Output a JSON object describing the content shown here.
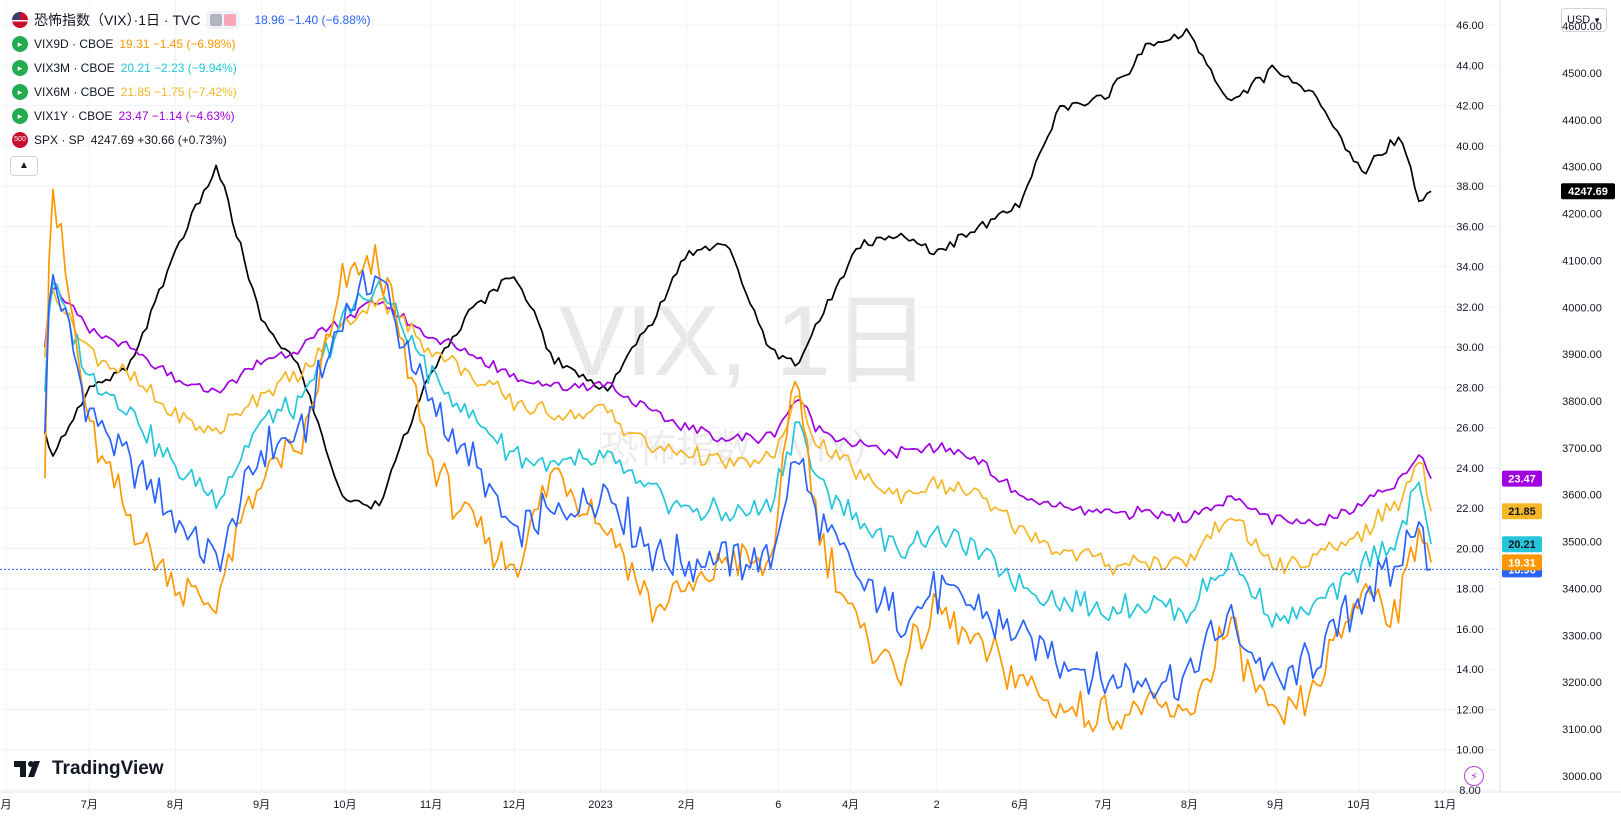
{
  "watermark": {
    "line1": "VIX, 1日",
    "line2": "恐怖指数（VIX）"
  },
  "header": {
    "title": "恐怖指数（VIX）·1日 · TVC",
    "main_values": "18.96 −1.40 (−6.88%)"
  },
  "legend": [
    {
      "symbol": "VIX9D · CBOE",
      "values": "19.31 −1.45 (−6.98%)",
      "color": "#ff9800"
    },
    {
      "symbol": "VIX3M · CBOE",
      "values": "20.21 −2.23 (−9.94%)",
      "color": "#26c6da"
    },
    {
      "symbol": "VIX6M · CBOE",
      "values": "21.85 −1.75 (−7.42%)",
      "color": "#f5b728"
    },
    {
      "symbol": "VIX1Y · CBOE",
      "values": "23.47 −1.14 (−4.63%)",
      "color": "#a100e0"
    },
    {
      "symbol": "SPX · SP",
      "values": "4247.69 +30.66 (+0.73%)",
      "color": "#000000",
      "badge": "500"
    }
  ],
  "currency_button": "USD",
  "branding": "TradingView",
  "chart_data": {
    "type": "line",
    "x_tick_labels": [
      "月",
      "7月",
      "8月",
      "9月",
      "10月",
      "11月",
      "12月",
      "2023",
      "2月",
      "6",
      "4月",
      "2",
      "6月",
      "7月",
      "8月",
      "9月",
      "10月",
      "11月"
    ],
    "y_left_ticks": [
      "46.00",
      "44.00",
      "42.00",
      "40.00",
      "38.00",
      "36.00",
      "34.00",
      "32.00",
      "30.00",
      "28.00",
      "26.00",
      "24.00",
      "22.00",
      "20.00",
      "18.00",
      "16.00",
      "14.00",
      "12.00",
      "10.00",
      "8.00"
    ],
    "y_right_ticks": [
      "4600.00",
      "4500.00",
      "4400.00",
      "4300.00",
      "4200.00",
      "4100.00",
      "4000.00",
      "3900.00",
      "3800.00",
      "3700.00",
      "3600.00",
      "3500.00",
      "3400.00",
      "3300.00",
      "3200.00",
      "3100.00",
      "3000.00"
    ],
    "ylim_left": [
      8,
      47
    ],
    "ylim_right": [
      2970,
      4645
    ],
    "x": [
      "2022-06-15",
      "2022-06-17",
      "2022-07-01",
      "2022-07-15",
      "2022-08-01",
      "2022-08-16",
      "2022-09-01",
      "2022-09-15",
      "2022-09-30",
      "2022-10-13",
      "2022-11-01",
      "2022-11-15",
      "2022-12-01",
      "2022-12-15",
      "2023-01-03",
      "2023-01-20",
      "2023-02-01",
      "2023-02-15",
      "2023-03-03",
      "2023-03-13",
      "2023-03-20",
      "2023-04-03",
      "2023-04-18",
      "2023-05-02",
      "2023-05-15",
      "2023-06-01",
      "2023-06-15",
      "2023-07-03",
      "2023-07-17",
      "2023-07-31",
      "2023-08-15",
      "2023-09-01",
      "2023-09-15",
      "2023-10-02",
      "2023-10-16",
      "2023-10-23",
      "2023-10-27"
    ],
    "series": [
      {
        "name": "恐怖指数（VIX）",
        "axis": "left",
        "color": "#2962ff",
        "last_label": "18.96",
        "values": [
          25.8,
          33.9,
          26.9,
          24.2,
          21.4,
          19.4,
          24.9,
          25.5,
          31.6,
          33.6,
          26.9,
          24.5,
          20.6,
          21.8,
          22.9,
          19.8,
          19.4,
          19.4,
          19.5,
          24.8,
          21.5,
          18.6,
          16.5,
          17.8,
          17.1,
          15.7,
          14.5,
          13.6,
          13.5,
          13.6,
          16.5,
          13.1,
          14.5,
          17.6,
          19.3,
          21.8,
          18.96
        ]
      },
      {
        "name": "VIX9D · CBOE",
        "axis": "left",
        "color": "#ff9800",
        "last_label": "19.31",
        "values": [
          23.5,
          38.8,
          25.9,
          21.5,
          18.1,
          17.4,
          23.8,
          24.7,
          33.0,
          34.7,
          24.5,
          21.0,
          19.0,
          24.0,
          21.0,
          17.0,
          17.8,
          19.5,
          19.0,
          29.0,
          21.0,
          16.2,
          14.0,
          17.0,
          15.4,
          13.5,
          12.0,
          11.8,
          12.0,
          11.5,
          16.3,
          11.0,
          13.0,
          18.0,
          17.0,
          21.5,
          19.31
        ]
      },
      {
        "name": "VIX3M · CBOE",
        "axis": "left",
        "color": "#26c6da",
        "last_label": "20.21",
        "values": [
          27.8,
          33.5,
          28.6,
          27.0,
          24.0,
          22.5,
          26.3,
          27.0,
          31.5,
          33.0,
          28.6,
          26.5,
          24.8,
          24.0,
          24.5,
          22.6,
          22.0,
          21.7,
          22.0,
          26.5,
          23.4,
          21.5,
          19.9,
          20.8,
          20.0,
          18.3,
          17.5,
          17.0,
          17.3,
          16.8,
          19.5,
          16.5,
          17.0,
          19.2,
          20.8,
          23.2,
          20.21
        ]
      },
      {
        "name": "VIX6M · CBOE",
        "axis": "left",
        "color": "#f5b728",
        "last_label": "21.85",
        "values": [
          29.5,
          33.0,
          29.8,
          28.6,
          26.6,
          25.8,
          27.8,
          28.6,
          31.0,
          32.5,
          29.9,
          28.6,
          27.3,
          26.7,
          26.8,
          24.9,
          24.8,
          24.2,
          24.3,
          27.5,
          25.3,
          23.7,
          22.6,
          23.2,
          22.8,
          20.9,
          20.0,
          19.2,
          19.4,
          19.2,
          21.7,
          19.0,
          19.4,
          20.8,
          22.3,
          24.7,
          21.85
        ]
      },
      {
        "name": "VIX1Y · CBOE",
        "axis": "left",
        "color": "#a100e0",
        "last_label": "23.47",
        "values": [
          30.0,
          33.3,
          30.7,
          30.0,
          28.3,
          27.8,
          29.3,
          30.0,
          31.3,
          32.3,
          30.5,
          29.7,
          28.6,
          28.0,
          28.2,
          26.7,
          26.0,
          25.5,
          25.5,
          27.5,
          26.0,
          25.2,
          24.7,
          25.0,
          24.6,
          22.6,
          22.0,
          21.7,
          21.8,
          21.5,
          22.5,
          21.4,
          21.2,
          22.3,
          23.3,
          24.9,
          23.47
        ]
      },
      {
        "name": "SPX · SP",
        "axis": "right",
        "color": "#000000",
        "last_label": "4247.69",
        "values": [
          3735,
          3680,
          3825,
          3865,
          4120,
          4300,
          3970,
          3870,
          3590,
          3580,
          3860,
          3990,
          4075,
          3890,
          3825,
          3975,
          4115,
          4140,
          3905,
          3880,
          3960,
          4130,
          4155,
          4120,
          4160,
          4220,
          4420,
          4455,
          4560,
          4588,
          4440,
          4510,
          4450,
          4290,
          4370,
          4220,
          4247.69
        ]
      }
    ]
  }
}
